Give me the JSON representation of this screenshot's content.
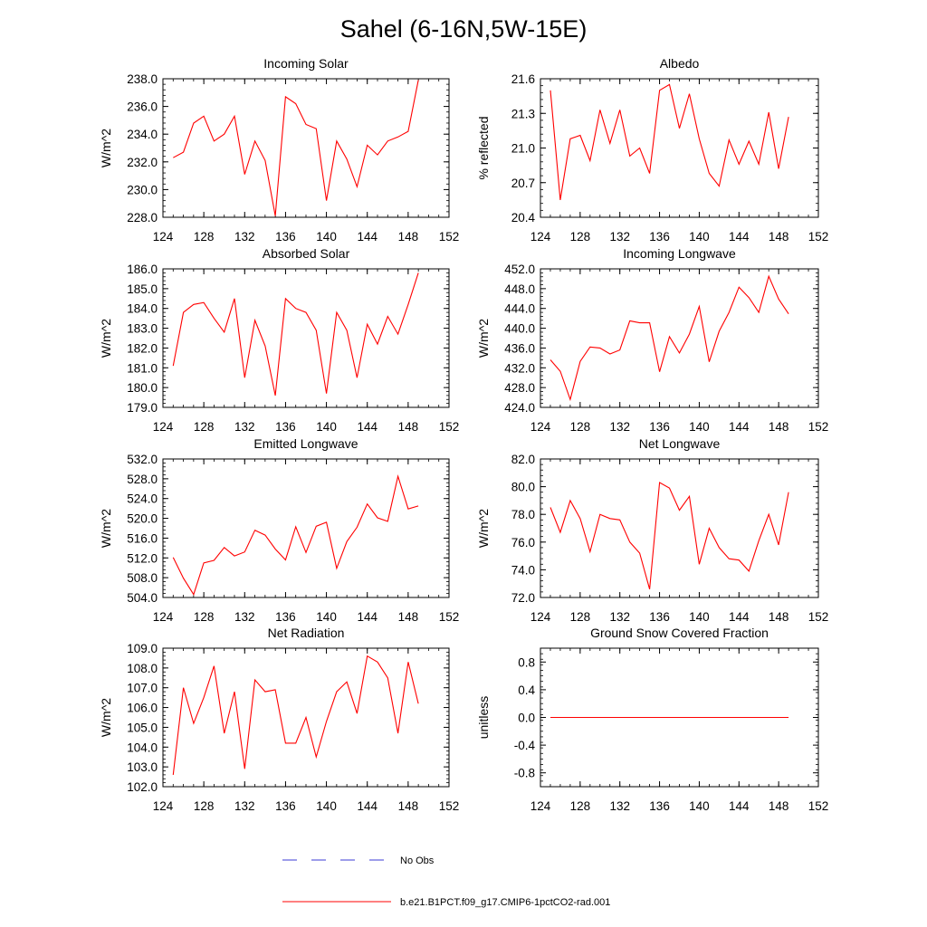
{
  "figure": {
    "title": "Sahel (6-16N,5W-15E)"
  },
  "legend": {
    "entries": [
      {
        "label": "No Obs",
        "color": "#3b3bd6",
        "style": "dashed"
      },
      {
        "label": "b.e21.B1PCT.f09_g17.CMIP6-1pctCO2-rad.001",
        "color": "#ff0000",
        "style": "solid"
      }
    ]
  },
  "chart_data": [
    {
      "type": "line",
      "title": "Incoming Solar",
      "ylabel": "W/m^2",
      "xlim": [
        124,
        152
      ],
      "ylim": [
        228.0,
        238.0
      ],
      "xticks": [
        "124",
        "128",
        "132",
        "136",
        "140",
        "144",
        "148",
        "152"
      ],
      "yticks": [
        "228.0",
        "230.0",
        "232.0",
        "234.0",
        "236.0",
        "238.0"
      ],
      "grid": false,
      "series": [
        {
          "color": "#ff0000",
          "x": [
            125,
            126,
            127,
            128,
            129,
            130,
            131,
            132,
            133,
            134,
            135,
            136,
            137,
            138,
            139,
            140,
            141,
            142,
            143,
            144,
            145,
            146,
            147,
            148,
            149
          ],
          "values": [
            232.3,
            232.7,
            234.8,
            235.3,
            233.5,
            234.0,
            235.3,
            231.1,
            233.5,
            232.1,
            228.1,
            236.7,
            236.2,
            234.7,
            234.4,
            229.2,
            233.5,
            232.2,
            230.2,
            233.2,
            232.5,
            233.5,
            233.8,
            234.2,
            237.9
          ]
        }
      ]
    },
    {
      "type": "line",
      "title": "Albedo",
      "ylabel": "% reflected",
      "xlim": [
        124,
        152
      ],
      "ylim": [
        20.4,
        21.6
      ],
      "xticks": [
        "124",
        "128",
        "132",
        "136",
        "140",
        "144",
        "148",
        "152"
      ],
      "yticks": [
        "20.4",
        "20.7",
        "21.0",
        "21.3",
        "21.6"
      ],
      "grid": false,
      "series": [
        {
          "color": "#ff0000",
          "x": [
            125,
            126,
            127,
            128,
            129,
            130,
            131,
            132,
            133,
            134,
            135,
            136,
            137,
            138,
            139,
            140,
            141,
            142,
            143,
            144,
            145,
            146,
            147,
            148,
            149
          ],
          "values": [
            21.5,
            20.55,
            21.08,
            21.11,
            20.89,
            21.33,
            21.04,
            21.33,
            20.93,
            21.0,
            20.78,
            21.5,
            21.55,
            21.17,
            21.47,
            21.08,
            20.78,
            20.67,
            21.07,
            20.86,
            21.06,
            20.86,
            21.31,
            20.82,
            21.27
          ]
        }
      ]
    },
    {
      "type": "line",
      "title": "Absorbed Solar",
      "ylabel": "W/m^2",
      "xlim": [
        124,
        152
      ],
      "ylim": [
        179.0,
        186.0
      ],
      "xticks": [
        "124",
        "128",
        "132",
        "136",
        "140",
        "144",
        "148",
        "152"
      ],
      "yticks": [
        "179.0",
        "180.0",
        "181.0",
        "182.0",
        "183.0",
        "184.0",
        "185.0",
        "186.0"
      ],
      "grid": false,
      "series": [
        {
          "color": "#ff0000",
          "x": [
            125,
            126,
            127,
            128,
            129,
            130,
            131,
            132,
            133,
            134,
            135,
            136,
            137,
            138,
            139,
            140,
            141,
            142,
            143,
            144,
            145,
            146,
            147,
            148,
            149
          ],
          "values": [
            181.1,
            183.8,
            184.2,
            184.3,
            183.5,
            182.8,
            184.5,
            180.5,
            183.4,
            182.1,
            179.6,
            184.5,
            184.0,
            183.8,
            182.9,
            179.7,
            183.8,
            182.9,
            180.5,
            183.2,
            182.2,
            183.6,
            182.7,
            184.2,
            185.8
          ]
        }
      ]
    },
    {
      "type": "line",
      "title": "Incoming Longwave",
      "ylabel": "W/m^2",
      "xlim": [
        124,
        152
      ],
      "ylim": [
        424.0,
        452.0
      ],
      "xticks": [
        "124",
        "128",
        "132",
        "136",
        "140",
        "144",
        "148",
        "152"
      ],
      "yticks": [
        "424.0",
        "428.0",
        "432.0",
        "436.0",
        "440.0",
        "444.0",
        "448.0",
        "452.0"
      ],
      "grid": false,
      "series": [
        {
          "color": "#ff0000",
          "x": [
            125,
            126,
            127,
            128,
            129,
            130,
            131,
            132,
            133,
            134,
            135,
            136,
            137,
            138,
            139,
            140,
            141,
            142,
            143,
            144,
            145,
            146,
            147,
            148,
            149
          ],
          "values": [
            433.6,
            431.3,
            425.6,
            433.3,
            436.2,
            436.0,
            434.8,
            435.6,
            441.5,
            441.1,
            441.1,
            431.2,
            438.3,
            435.0,
            438.8,
            444.4,
            433.2,
            439.4,
            443.2,
            448.3,
            446.2,
            443.2,
            450.5,
            445.9,
            442.9
          ]
        }
      ]
    },
    {
      "type": "line",
      "title": "Emitted Longwave",
      "ylabel": "W/m^2",
      "xlim": [
        124,
        152
      ],
      "ylim": [
        504.0,
        532.0
      ],
      "xticks": [
        "124",
        "128",
        "132",
        "136",
        "140",
        "144",
        "148",
        "152"
      ],
      "yticks": [
        "504.0",
        "508.0",
        "512.0",
        "516.0",
        "520.0",
        "524.0",
        "528.0",
        "532.0"
      ],
      "grid": false,
      "series": [
        {
          "color": "#ff0000",
          "x": [
            125,
            126,
            127,
            128,
            129,
            130,
            131,
            132,
            133,
            134,
            135,
            136,
            137,
            138,
            139,
            140,
            141,
            142,
            143,
            144,
            145,
            146,
            147,
            148,
            149
          ],
          "values": [
            512.1,
            507.9,
            504.6,
            511.0,
            511.5,
            514.1,
            512.4,
            513.2,
            517.6,
            516.6,
            513.8,
            511.6,
            518.3,
            513.1,
            518.4,
            519.2,
            509.9,
            515.3,
            518.2,
            522.9,
            520.1,
            519.4,
            528.5,
            521.9,
            522.5
          ]
        }
      ]
    },
    {
      "type": "line",
      "title": "Net Longwave",
      "ylabel": "W/m^2",
      "xlim": [
        124,
        152
      ],
      "ylim": [
        72.0,
        82.0
      ],
      "xticks": [
        "124",
        "128",
        "132",
        "136",
        "140",
        "144",
        "148",
        "152"
      ],
      "yticks": [
        "72.0",
        "74.0",
        "76.0",
        "78.0",
        "80.0",
        "82.0"
      ],
      "grid": false,
      "series": [
        {
          "color": "#ff0000",
          "x": [
            125,
            126,
            127,
            128,
            129,
            130,
            131,
            132,
            133,
            134,
            135,
            136,
            137,
            138,
            139,
            140,
            141,
            142,
            143,
            144,
            145,
            146,
            147,
            148,
            149
          ],
          "values": [
            78.5,
            76.7,
            79.0,
            77.7,
            75.3,
            78.0,
            77.7,
            77.6,
            76.0,
            75.2,
            72.6,
            80.3,
            79.9,
            78.3,
            79.3,
            74.4,
            77.0,
            75.6,
            74.8,
            74.7,
            73.9,
            76.1,
            78.0,
            75.8,
            79.6
          ]
        }
      ]
    },
    {
      "type": "line",
      "title": "Net Radiation",
      "ylabel": "W/m^2",
      "xlim": [
        124,
        152
      ],
      "ylim": [
        102.0,
        109.0
      ],
      "xticks": [
        "124",
        "128",
        "132",
        "136",
        "140",
        "144",
        "148",
        "152"
      ],
      "yticks": [
        "102.0",
        "103.0",
        "104.0",
        "105.0",
        "106.0",
        "107.0",
        "108.0",
        "109.0"
      ],
      "grid": false,
      "series": [
        {
          "color": "#ff0000",
          "x": [
            125,
            126,
            127,
            128,
            129,
            130,
            131,
            132,
            133,
            134,
            135,
            136,
            137,
            138,
            139,
            140,
            141,
            142,
            143,
            144,
            145,
            146,
            147,
            148,
            149
          ],
          "values": [
            102.6,
            107.0,
            105.2,
            106.5,
            108.1,
            104.7,
            106.8,
            102.9,
            107.4,
            106.8,
            106.9,
            104.2,
            104.2,
            105.5,
            103.5,
            105.3,
            106.8,
            107.3,
            105.7,
            108.6,
            108.3,
            107.5,
            104.7,
            108.3,
            106.2
          ]
        }
      ]
    },
    {
      "type": "line",
      "title": "Ground Snow Covered Fraction",
      "ylabel": "unitless",
      "xlim": [
        124,
        152
      ],
      "ylim": [
        -1.0,
        1.0
      ],
      "xticks": [
        "124",
        "128",
        "132",
        "136",
        "140",
        "144",
        "148",
        "152"
      ],
      "yticks": [
        "-0.8",
        "-0.4",
        "0.0",
        "0.4",
        "0.8"
      ],
      "grid": false,
      "series": [
        {
          "color": "#ff0000",
          "x": [
            125,
            149
          ],
          "values": [
            0.0,
            0.0
          ]
        }
      ]
    }
  ]
}
